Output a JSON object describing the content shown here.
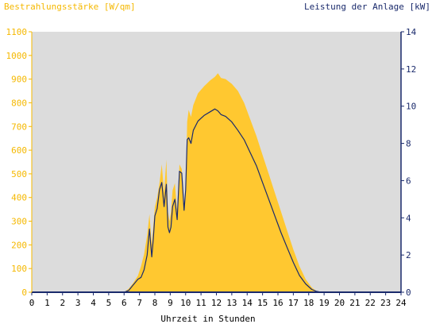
{
  "chart_data": {
    "type": "area",
    "left_axis_title": "Bestrahlungsstärke [W/qm]",
    "right_axis_title": "Leistung der Anlage [kW]",
    "xlabel": "Uhrzeit in Stunden",
    "xlim": [
      0,
      24
    ],
    "x_ticks": [
      "0",
      "1",
      "2",
      "3",
      "4",
      "5",
      "6",
      "7",
      "8",
      "9",
      "10",
      "11",
      "12",
      "13",
      "14",
      "15",
      "16",
      "17",
      "18",
      "19",
      "20",
      "21",
      "22",
      "23",
      "24"
    ],
    "ylim_left": [
      0,
      1100
    ],
    "y_ticks_left": [
      "0",
      "100",
      "200",
      "300",
      "400",
      "500",
      "600",
      "700",
      "800",
      "900",
      "1000",
      "1100"
    ],
    "ylim_right": [
      0,
      14
    ],
    "y_ticks_right": [
      "0",
      "2",
      "4",
      "6",
      "8",
      "10",
      "12",
      "14"
    ],
    "grid": false,
    "colors": {
      "plot_background": "#dcdcdc",
      "irradiance_fill": "#ffc830",
      "power_line": "#1a2a6c",
      "left_axis_text": "#f5b800",
      "right_axis_text": "#1a2a6c"
    },
    "series": [
      {
        "axis": "left",
        "kind": "area",
        "x": [
          0,
          6.0,
          6.3,
          6.6,
          6.9,
          7.1,
          7.3,
          7.5,
          7.65,
          7.8,
          7.9,
          8.0,
          8.15,
          8.3,
          8.45,
          8.6,
          8.75,
          8.85,
          8.95,
          9.05,
          9.15,
          9.3,
          9.45,
          9.6,
          9.75,
          9.9,
          10.0,
          10.1,
          10.2,
          10.35,
          10.5,
          10.8,
          11.2,
          11.6,
          11.9,
          12.1,
          12.3,
          12.6,
          13.0,
          13.4,
          13.8,
          14.2,
          14.6,
          15.0,
          15.4,
          15.8,
          16.2,
          16.6,
          17.0,
          17.4,
          17.8,
          18.2,
          18.5,
          18.8,
          19.0,
          24
        ],
        "y": [
          0,
          0,
          15,
          40,
          70,
          110,
          160,
          240,
          330,
          200,
          280,
          360,
          400,
          460,
          540,
          420,
          560,
          340,
          300,
          340,
          430,
          460,
          340,
          540,
          520,
          360,
          420,
          720,
          770,
          740,
          790,
          840,
          870,
          895,
          910,
          925,
          905,
          900,
          880,
          850,
          800,
          730,
          660,
          580,
          500,
          420,
          340,
          260,
          180,
          110,
          55,
          20,
          5,
          0,
          0,
          0
        ]
      },
      {
        "axis": "right",
        "kind": "line",
        "x": [
          0,
          6.0,
          6.3,
          6.6,
          6.9,
          7.1,
          7.3,
          7.5,
          7.65,
          7.8,
          7.9,
          8.0,
          8.15,
          8.3,
          8.45,
          8.6,
          8.75,
          8.85,
          8.95,
          9.05,
          9.15,
          9.3,
          9.45,
          9.6,
          9.75,
          9.9,
          10.0,
          10.1,
          10.2,
          10.35,
          10.5,
          10.8,
          11.2,
          11.6,
          11.9,
          12.1,
          12.3,
          12.6,
          13.0,
          13.4,
          13.8,
          14.2,
          14.6,
          15.0,
          15.4,
          15.8,
          16.2,
          16.6,
          17.0,
          17.4,
          17.8,
          18.2,
          18.5,
          18.8,
          19.0,
          24
        ],
        "y": [
          0,
          0,
          0.1,
          0.4,
          0.7,
          0.8,
          1.2,
          2.0,
          3.4,
          1.9,
          2.9,
          4.1,
          4.5,
          5.5,
          5.9,
          4.6,
          5.8,
          3.5,
          3.2,
          3.5,
          4.6,
          5.0,
          3.9,
          6.5,
          6.4,
          4.4,
          5.5,
          8.2,
          8.3,
          8.0,
          8.7,
          9.2,
          9.5,
          9.7,
          9.85,
          9.75,
          9.55,
          9.45,
          9.15,
          8.7,
          8.2,
          7.5,
          6.8,
          5.9,
          5.0,
          4.1,
          3.2,
          2.4,
          1.6,
          0.9,
          0.45,
          0.15,
          0.05,
          0,
          0,
          0
        ]
      }
    ]
  }
}
